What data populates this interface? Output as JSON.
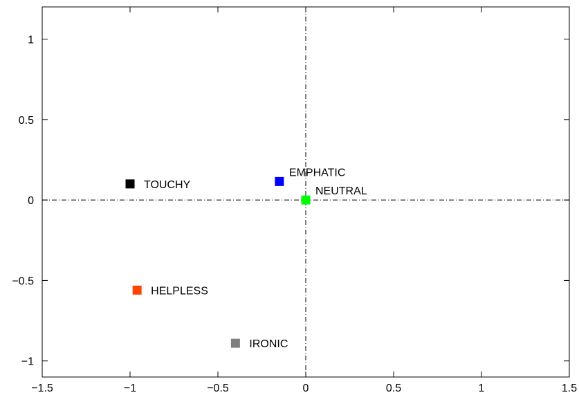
{
  "chart_data": {
    "type": "scatter",
    "title": "",
    "xlabel": "",
    "ylabel": "",
    "xlim": [
      -1.5,
      1.5
    ],
    "ylim": [
      -1.1,
      1.2
    ],
    "grid": false,
    "reference_lines": {
      "x": 0,
      "y": 0
    },
    "x_ticks": [
      {
        "value": -1.5,
        "label": "−1.5"
      },
      {
        "value": -1,
        "label": "−1"
      },
      {
        "value": -0.5,
        "label": "−0.5"
      },
      {
        "value": 0,
        "label": "0"
      },
      {
        "value": 0.5,
        "label": "0.5"
      },
      {
        "value": 1,
        "label": "1"
      },
      {
        "value": 1.5,
        "label": "1.5"
      }
    ],
    "y_ticks": [
      {
        "value": -1,
        "label": "−1"
      },
      {
        "value": -0.5,
        "label": "−0.5"
      },
      {
        "value": 0,
        "label": "0"
      },
      {
        "value": 0.5,
        "label": "0.5"
      },
      {
        "value": 1,
        "label": "1"
      }
    ],
    "points": [
      {
        "label": "TOUCHY",
        "x": -1.0,
        "y": 0.1,
        "color": "#000000",
        "label_pos": "right"
      },
      {
        "label": "EMPHATIC",
        "x": -0.15,
        "y": 0.115,
        "color": "#0000ff",
        "label_pos": "above-right"
      },
      {
        "label": "NEUTRAL",
        "x": 0.0,
        "y": 0.0,
        "color": "#00ff00",
        "label_pos": "above-right"
      },
      {
        "label": "HELPLESS",
        "x": -0.96,
        "y": -0.56,
        "color": "#ff4500",
        "label_pos": "right"
      },
      {
        "label": "IRONIC",
        "x": -0.4,
        "y": -0.89,
        "color": "#808080",
        "label_pos": "right"
      }
    ]
  }
}
